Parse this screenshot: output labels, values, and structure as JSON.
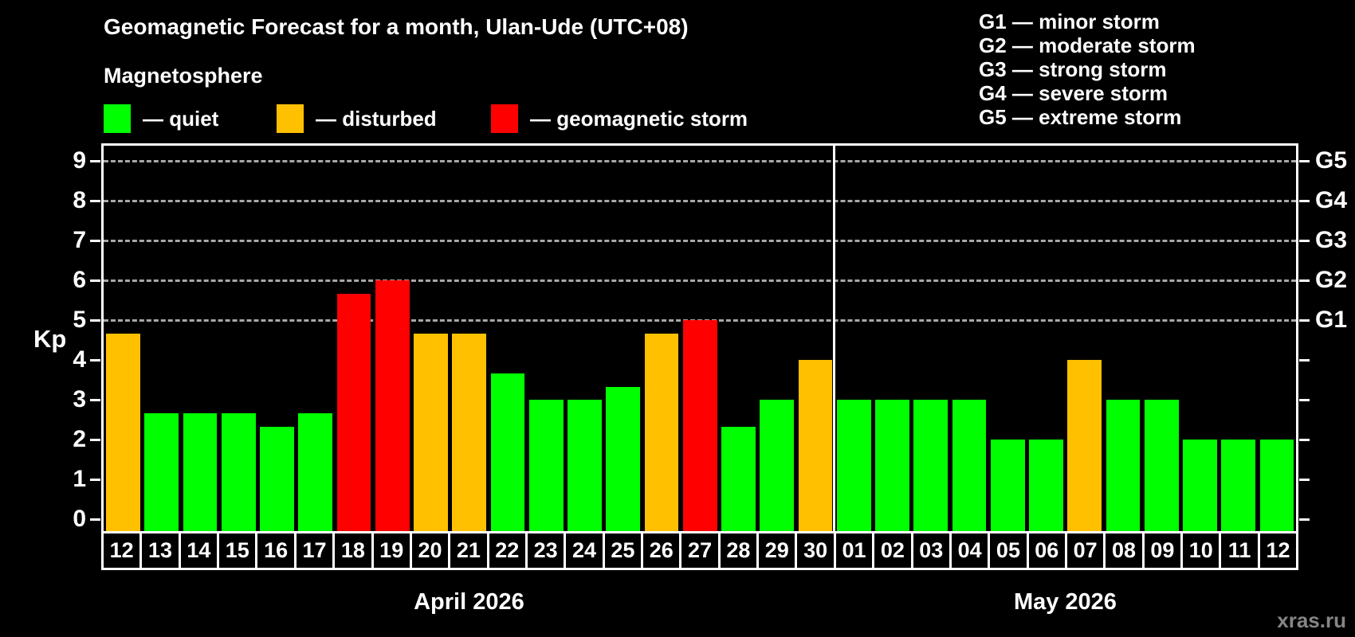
{
  "header": {
    "title": "Geomagnetic Forecast for a month, Ulan-Ude (UTC+08)",
    "subtitle": "Magnetosphere"
  },
  "legend": {
    "items": [
      {
        "name": "quiet",
        "label": "— quiet",
        "color": "#00ff00"
      },
      {
        "name": "disturbed",
        "label": "— disturbed",
        "color": "#ffc000"
      },
      {
        "name": "storm",
        "label": "— geomagnetic storm",
        "color": "#ff0000"
      }
    ]
  },
  "storm_scale_legend": {
    "items": [
      "G1 — minor storm",
      "G2 — moderate storm",
      "G3 — strong storm",
      "G4 — severe storm",
      "G5 — extreme storm"
    ]
  },
  "watermark": "xras.ru",
  "chart_data": {
    "type": "bar",
    "title": "Geomagnetic Forecast for a month, Ulan-Ude (UTC+08)",
    "ylabel": "Kp",
    "ylim": [
      0,
      9.4
    ],
    "yticks": [
      0,
      1,
      2,
      3,
      4,
      5,
      6,
      7,
      8,
      9
    ],
    "gridlines_at": [
      5,
      6,
      7,
      8,
      9
    ],
    "grid": "dashed-horizontal-on-storm-levels",
    "legend_position": "top-left",
    "colors": {
      "quiet": "#00ff00",
      "disturbed": "#ffc000",
      "storm": "#ff0000"
    },
    "g_levels": [
      {
        "label": "G1",
        "kp": 5
      },
      {
        "label": "G2",
        "kp": 6
      },
      {
        "label": "G3",
        "kp": 7
      },
      {
        "label": "G4",
        "kp": 8
      },
      {
        "label": "G5",
        "kp": 9
      }
    ],
    "months": [
      {
        "label": "April 2026",
        "days": 19
      },
      {
        "label": "May 2026",
        "days": 12
      }
    ],
    "points": [
      {
        "date": "12",
        "kp": 4.67,
        "status": "disturbed"
      },
      {
        "date": "13",
        "kp": 2.67,
        "status": "quiet"
      },
      {
        "date": "14",
        "kp": 2.67,
        "status": "quiet"
      },
      {
        "date": "15",
        "kp": 2.67,
        "status": "quiet"
      },
      {
        "date": "16",
        "kp": 2.33,
        "status": "quiet"
      },
      {
        "date": "17",
        "kp": 2.67,
        "status": "quiet"
      },
      {
        "date": "18",
        "kp": 5.67,
        "status": "storm"
      },
      {
        "date": "19",
        "kp": 6.0,
        "status": "storm"
      },
      {
        "date": "20",
        "kp": 4.67,
        "status": "disturbed"
      },
      {
        "date": "21",
        "kp": 4.67,
        "status": "disturbed"
      },
      {
        "date": "22",
        "kp": 3.67,
        "status": "quiet"
      },
      {
        "date": "23",
        "kp": 3.0,
        "status": "quiet"
      },
      {
        "date": "24",
        "kp": 3.0,
        "status": "quiet"
      },
      {
        "date": "25",
        "kp": 3.33,
        "status": "quiet"
      },
      {
        "date": "26",
        "kp": 4.67,
        "status": "disturbed"
      },
      {
        "date": "27",
        "kp": 5.0,
        "status": "storm"
      },
      {
        "date": "28",
        "kp": 2.33,
        "status": "quiet"
      },
      {
        "date": "29",
        "kp": 3.0,
        "status": "quiet"
      },
      {
        "date": "30",
        "kp": 4.0,
        "status": "disturbed"
      },
      {
        "date": "01",
        "kp": 3.0,
        "status": "quiet"
      },
      {
        "date": "02",
        "kp": 3.0,
        "status": "quiet"
      },
      {
        "date": "03",
        "kp": 3.0,
        "status": "quiet"
      },
      {
        "date": "04",
        "kp": 3.0,
        "status": "quiet"
      },
      {
        "date": "05",
        "kp": 2.0,
        "status": "quiet"
      },
      {
        "date": "06",
        "kp": 2.0,
        "status": "quiet"
      },
      {
        "date": "07",
        "kp": 4.0,
        "status": "disturbed"
      },
      {
        "date": "08",
        "kp": 3.0,
        "status": "quiet"
      },
      {
        "date": "09",
        "kp": 3.0,
        "status": "quiet"
      },
      {
        "date": "10",
        "kp": 2.0,
        "status": "quiet"
      },
      {
        "date": "11",
        "kp": 2.0,
        "status": "quiet"
      },
      {
        "date": "12",
        "kp": 2.0,
        "status": "quiet"
      }
    ]
  }
}
